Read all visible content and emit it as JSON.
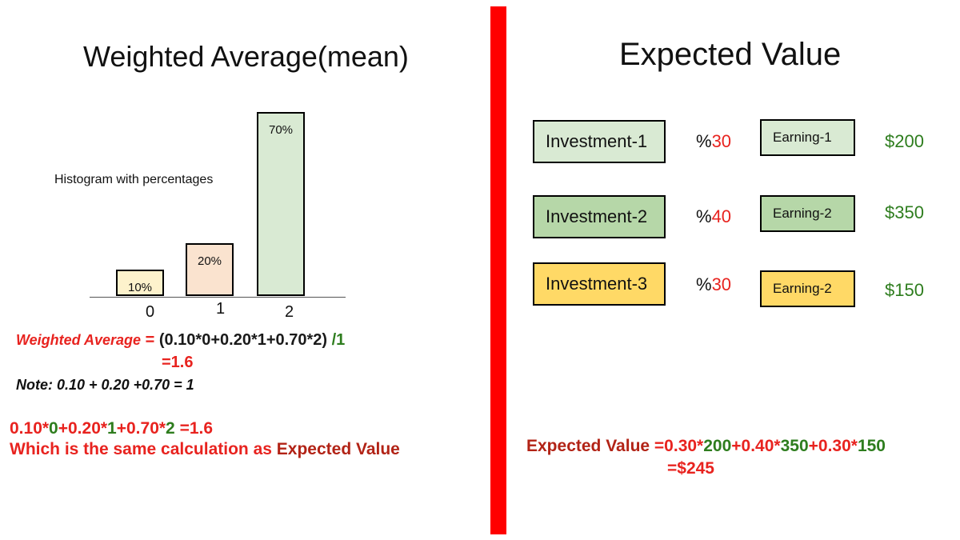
{
  "left": {
    "title": "Weighted Average(mean)",
    "histogram_label": "Histogram with percentages",
    "formula": {
      "label": "Weighted Average",
      "eq": " = ",
      "expr": "(0.10*0+0.20*1+0.70*2)",
      "div": " /1",
      "result": "=1.6"
    },
    "note": "Note:  0.10 + 0.20 +0.70 = 1",
    "calc2": {
      "t1": "0.10*",
      "t2": "0",
      "t3": "+0.20*",
      "t4": "1",
      "t5": "+0.70*",
      "t6": "2",
      "t7": " =1.6"
    },
    "same_text": "Which is the same calculation as  ",
    "same_ev": "Expected Value"
  },
  "chart_data": {
    "type": "bar",
    "categories": [
      "0",
      "1",
      "2"
    ],
    "values": [
      10,
      20,
      70
    ],
    "value_labels": [
      "10%",
      "20%",
      "70%"
    ],
    "colors": [
      "#fdf2cc",
      "#fae3cf",
      "#d9ead3"
    ],
    "title": "Histogram with percentages",
    "ylim": [
      0,
      70
    ]
  },
  "right": {
    "title": "Expected Value",
    "rows": [
      {
        "investment": "Investment-1",
        "pct_prefix": "%",
        "pct_value": "30",
        "earning": "Earning-1",
        "money": "$200",
        "inv_color": "#d9ead3",
        "earn_color": "#d9ead3"
      },
      {
        "investment": "Investment-2",
        "pct_prefix": "%",
        "pct_value": "40",
        "earning": "Earning-2",
        "money": "$350",
        "inv_color": "#b6d7a8",
        "earn_color": "#b6d7a8"
      },
      {
        "investment": "Investment-3",
        "pct_prefix": "%",
        "pct_value": "30",
        "earning": "Earning-2",
        "money": "$150",
        "inv_color": "#ffd966",
        "earn_color": "#ffd966"
      }
    ],
    "ev_formula": {
      "label": "Expected Value ",
      "p1": "=0.30*",
      "v1": "200",
      "p2": "+0.40*",
      "v2": "350",
      "p3": "+0.30*",
      "v3": "150"
    },
    "ev_result": "=$245"
  },
  "colors": {
    "divider": "#ff0000",
    "red": "#e8231f",
    "green": "#2e7d1e"
  }
}
